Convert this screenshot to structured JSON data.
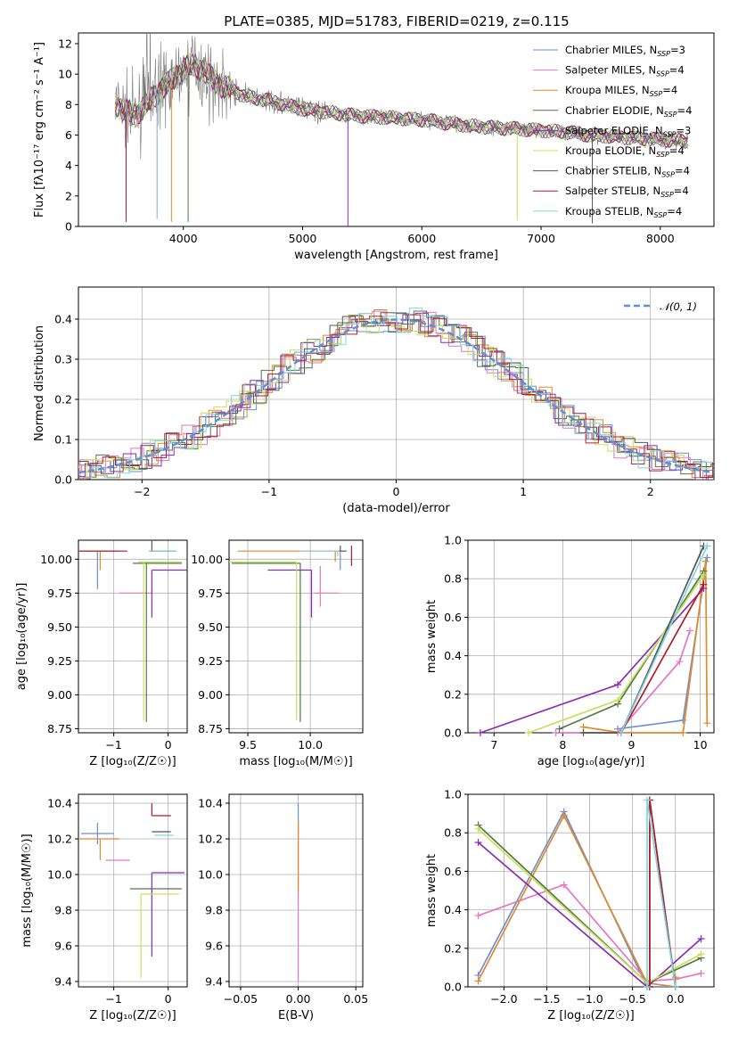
{
  "figure_title": "PLATE=0385, MJD=51783, FIBERID=0219, z=0.115",
  "colors": [
    "#6a8fd6",
    "#e377c2",
    "#e08a2a",
    "#4f7a47",
    "#8a2cb0",
    "#c8e05a",
    "#555555",
    "#b01c2a",
    "#7fd6e0"
  ],
  "chart_data": [
    {
      "id": "spectrum",
      "type": "line",
      "title": "PLATE=0385, MJD=51783, FIBERID=0219, z=0.115",
      "xlabel": "wavelength [Angstrom, rest frame]",
      "ylabel": "Flux [fλ10⁻¹⁷ erg cm⁻² s⁻¹ A⁻¹]",
      "xlim": [
        3120,
        8450
      ],
      "ylim": [
        0,
        12.7
      ],
      "xticks": [
        4000,
        5000,
        6000,
        7000,
        8000
      ],
      "yticks": [
        0,
        2,
        4,
        6,
        8,
        10,
        12
      ],
      "grid": false,
      "legend_position": "top-right",
      "continuum": {
        "x": [
          3430,
          3500,
          3600,
          3700,
          3800,
          3900,
          4000,
          4100,
          4200,
          4300,
          4400,
          4500,
          4600,
          4700,
          4800,
          4900,
          5000,
          5200,
          5400,
          5600,
          5800,
          6000,
          6200,
          6400,
          6600,
          6800,
          7000,
          7200,
          7400,
          7600,
          7800,
          8000,
          8230
        ],
        "y": [
          8.1,
          7.6,
          7.3,
          8.1,
          8.9,
          9.6,
          10.3,
          10.6,
          10.0,
          9.3,
          9.0,
          8.6,
          8.4,
          8.3,
          8.1,
          7.9,
          7.7,
          7.5,
          7.3,
          7.2,
          7.1,
          7.0,
          6.8,
          6.6,
          6.5,
          6.4,
          6.3,
          6.2,
          6.0,
          5.9,
          5.8,
          5.7,
          5.6
        ]
      },
      "series": [
        {
          "name": "Chabrier MILES, Nₛₛₚ=3",
          "label_main": "Chabrier MILES, N",
          "label_sub": "SSP",
          "label_tail": "=3"
        },
        {
          "name": "Salpeter MILES, Nₛₛₚ=4",
          "label_main": "Salpeter MILES, N",
          "label_sub": "SSP",
          "label_tail": "=4"
        },
        {
          "name": "Kroupa MILES, Nₛₛₚ=4",
          "label_main": "Kroupa MILES, N",
          "label_sub": "SSP",
          "label_tail": "=4"
        },
        {
          "name": "Chabrier ELODIE, Nₛₛₚ=4",
          "label_main": "Chabrier ELODIE, N",
          "label_sub": "SSP",
          "label_tail": "=4"
        },
        {
          "name": "Salpeter ELODIE, Nₛₛₚ=3",
          "label_main": "Salpeter ELODIE, N",
          "label_sub": "SSP",
          "label_tail": "=3"
        },
        {
          "name": "Kroupa ELODIE, Nₛₛₚ=4",
          "label_main": "Kroupa ELODIE, N",
          "label_sub": "SSP",
          "label_tail": "=4"
        },
        {
          "name": "Chabrier STELIB, Nₛₛₚ=4",
          "label_main": "Chabrier STELIB, N",
          "label_sub": "SSP",
          "label_tail": "=4"
        },
        {
          "name": "Salpeter STELIB, Nₛₛₚ=4",
          "label_main": "Salpeter STELIB, N",
          "label_sub": "SSP",
          "label_tail": "=4"
        },
        {
          "name": "Kroupa STELIB, Nₛₛₚ=4",
          "label_main": "Kroupa STELIB, N",
          "label_sub": "SSP",
          "label_tail": "=4"
        }
      ]
    },
    {
      "id": "residuals",
      "type": "line",
      "xlabel": "(data-model)/error",
      "ylabel": "Normed distribution",
      "xlim": [
        -2.5,
        2.5
      ],
      "ylim": [
        0,
        0.48
      ],
      "xticks": [
        -2,
        -1,
        0,
        1,
        2
      ],
      "yticks": [
        0.0,
        0.1,
        0.2,
        0.3,
        0.4
      ],
      "grid": true,
      "legend_position": "top-right",
      "reference": {
        "name": "𝒩(0, 1)",
        "mean": 0,
        "sigma": 1
      }
    },
    {
      "id": "age-vs-z",
      "type": "scatter",
      "xlabel": "Z [log₁₀(Z/Z☉)]",
      "ylabel": "age  [log₁₀(age/yr)]",
      "xlim": [
        -1.65,
        0.35
      ],
      "ylim": [
        8.72,
        10.14
      ],
      "xticks": [
        -1,
        0
      ],
      "yticks": [
        8.75,
        9.0,
        9.25,
        9.5,
        9.75,
        10.0
      ],
      "grid": true,
      "points": [
        {
          "x": -1.3,
          "xerr": [
            0.3,
            0.3
          ],
          "y": 10.06,
          "yerr": [
            0.28,
            0.0
          ]
        },
        {
          "x": -0.6,
          "xerr": [
            0.3,
            0.3
          ],
          "y": 9.75,
          "yerr": [
            0.0,
            0.0
          ]
        },
        {
          "x": -1.25,
          "xerr": [
            0.45,
            0.35
          ],
          "y": 10.06,
          "yerr": [
            0.14,
            0.0
          ]
        },
        {
          "x": -0.4,
          "xerr": [
            0.25,
            0.65
          ],
          "y": 9.97,
          "yerr": [
            1.17,
            0.0
          ]
        },
        {
          "x": -0.3,
          "xerr": [
            0.0,
            0.65
          ],
          "y": 9.92,
          "yerr": [
            0.35,
            0.0
          ]
        },
        {
          "x": -0.45,
          "xerr": [
            0.1,
            0.7
          ],
          "y": 9.98,
          "yerr": [
            1.17,
            0.0
          ]
        },
        {
          "x": -0.3,
          "xerr": [
            0.05,
            0.45
          ],
          "y": 10.06,
          "yerr": [
            0.0,
            0.08
          ]
        },
        {
          "x": -1.2,
          "xerr": [
            0.45,
            0.45
          ],
          "y": 10.06,
          "yerr": [
            0.0,
            0.0
          ]
        },
        {
          "x": -0.1,
          "xerr": [
            0.25,
            0.25
          ],
          "y": 10.06,
          "yerr": [
            0.0,
            0.0
          ]
        }
      ]
    },
    {
      "id": "age-vs-mass",
      "type": "scatter",
      "xlabel": "mass [log₁₀(M/M☉)]",
      "ylabel": "",
      "xlim": [
        9.35,
        10.42
      ],
      "ylim": [
        8.72,
        10.14
      ],
      "xticks": [
        9.5,
        10.0
      ],
      "yticks": [
        8.75,
        9.0,
        9.25,
        9.5,
        9.75,
        10.0
      ],
      "grid": true,
      "points": [
        {
          "x": 10.24,
          "xerr": [
            0.0,
            0.0
          ],
          "y": 10.06,
          "yerr": [
            0.14,
            0.0
          ]
        },
        {
          "x": 10.08,
          "xerr": [
            0.05,
            0.15
          ],
          "y": 9.75,
          "yerr": [
            0.1,
            0.2
          ]
        },
        {
          "x": 10.2,
          "xerr": [
            0.78,
            0.05
          ],
          "y": 10.06,
          "yerr": [
            0.08,
            0.0
          ]
        },
        {
          "x": 9.92,
          "xerr": [
            0.55,
            0.0
          ],
          "y": 9.97,
          "yerr": [
            1.17,
            0.0
          ]
        },
        {
          "x": 10.01,
          "xerr": [
            0.35,
            0.0
          ],
          "y": 9.92,
          "yerr": [
            0.35,
            0.0
          ]
        },
        {
          "x": 9.89,
          "xerr": [
            0.55,
            0.0
          ],
          "y": 9.98,
          "yerr": [
            1.17,
            0.0
          ]
        },
        {
          "x": 10.24,
          "xerr": [
            0.0,
            0.05
          ],
          "y": 10.06,
          "yerr": [
            0.0,
            0.04
          ]
        },
        {
          "x": 10.33,
          "xerr": [
            0.0,
            0.0
          ],
          "y": 10.06,
          "yerr": [
            0.11,
            0.04
          ]
        },
        {
          "x": 10.22,
          "xerr": [
            0.3,
            0.0
          ],
          "y": 10.06,
          "yerr": [
            0.04,
            0.0
          ]
        }
      ]
    },
    {
      "id": "weight-vs-age",
      "type": "line",
      "xlabel": "age  [log₁₀(age/yr)]",
      "ylabel": "mass weight",
      "xlim": [
        6.62,
        10.2
      ],
      "ylim": [
        0,
        1.0
      ],
      "xticks": [
        7,
        8,
        9,
        10
      ],
      "yticks": [
        0.0,
        0.2,
        0.4,
        0.6,
        0.8,
        1.0
      ],
      "grid": true,
      "series": [
        {
          "x": [
            8.8,
            9.75,
            10.1
          ],
          "y": [
            0.02,
            0.065,
            0.91
          ]
        },
        {
          "x": [
            7.9,
            8.8,
            9.7,
            9.85
          ],
          "y": [
            0.0,
            0.0,
            0.37,
            0.53
          ]
        },
        {
          "x": [
            8.3,
            8.85,
            9.75,
            10.08,
            10.1
          ],
          "y": [
            0.03,
            0.0,
            0.0,
            0.89,
            0.05
          ]
        },
        {
          "x": [
            7.95,
            8.8,
            10.05
          ],
          "y": [
            0.02,
            0.15,
            0.84
          ]
        },
        {
          "x": [
            6.8,
            8.8,
            10.05
          ],
          "y": [
            0.0,
            0.25,
            0.75
          ]
        },
        {
          "x": [
            7.5,
            8.8,
            10.05
          ],
          "y": [
            0.0,
            0.17,
            0.82
          ]
        },
        {
          "x": [
            8.3,
            8.85,
            10.05
          ],
          "y": [
            0.0,
            0.0,
            0.97
          ]
        },
        {
          "x": [
            8.85,
            10.05
          ],
          "y": [
            0.0,
            0.77
          ]
        },
        {
          "x": [
            8.85,
            10.1
          ],
          "y": [
            0.0,
            0.97
          ]
        }
      ]
    },
    {
      "id": "weight-vs-z",
      "type": "line",
      "xlabel": "Z [log₁₀(Z/Z☉)]",
      "ylabel": "mass weight",
      "xlim": [
        -2.42,
        0.45
      ],
      "ylim": [
        0,
        1.0
      ],
      "xticks": [
        -2.0,
        -1.5,
        -1.0,
        -0.5,
        0.0
      ],
      "yticks": [
        0.0,
        0.2,
        0.4,
        0.6,
        0.8,
        1.0
      ],
      "grid": true,
      "series": [
        {
          "x": [
            -2.3,
            -1.3,
            -0.33,
            0.0
          ],
          "y": [
            0.06,
            0.91,
            0.0,
            0.0
          ]
        },
        {
          "x": [
            -2.3,
            -1.3,
            -0.33,
            0.0,
            0.3
          ],
          "y": [
            0.37,
            0.53,
            0.03,
            0.04,
            0.07
          ]
        },
        {
          "x": [
            -2.3,
            -1.3,
            -0.33,
            0.0,
            0.0
          ],
          "y": [
            0.03,
            0.89,
            0.02,
            0.0,
            0.05
          ]
        },
        {
          "x": [
            -2.3,
            -0.33,
            0.3
          ],
          "y": [
            0.84,
            0.02,
            0.15
          ]
        },
        {
          "x": [
            -2.3,
            -0.33,
            0.3
          ],
          "y": [
            0.75,
            0.0,
            0.25
          ]
        },
        {
          "x": [
            -2.3,
            -0.33,
            0.3
          ],
          "y": [
            0.82,
            0.02,
            0.17
          ]
        },
        {
          "x": [
            -0.3,
            -0.3,
            0.0
          ],
          "y": [
            0.0,
            0.97,
            0.0
          ]
        },
        {
          "x": [
            -0.3,
            -0.3,
            0.0
          ],
          "y": [
            0.0,
            0.97,
            0.0
          ]
        },
        {
          "x": [
            -0.33,
            -0.33,
            0.0
          ],
          "y": [
            0.0,
            0.97,
            0.0
          ]
        }
      ]
    },
    {
      "id": "mass-vs-z",
      "type": "scatter",
      "xlabel": "Z [log₁₀(Z/Z☉)]",
      "ylabel": "mass [log₁₀(M/M☉)]",
      "xlim": [
        -1.65,
        0.35
      ],
      "ylim": [
        9.37,
        10.45
      ],
      "xticks": [
        -1,
        0
      ],
      "yticks": [
        9.4,
        9.6,
        9.8,
        10.0,
        10.2,
        10.4
      ],
      "grid": true,
      "points": [
        {
          "x": -1.3,
          "xerr": [
            0.3,
            0.3
          ],
          "y": 10.23,
          "yerr": [
            0.06,
            0.06
          ]
        },
        {
          "x": -0.85,
          "xerr": [
            0.3,
            0.15
          ],
          "y": 10.08,
          "yerr": [
            0.0,
            0.0
          ]
        },
        {
          "x": -1.25,
          "xerr": [
            0.45,
            0.35
          ],
          "y": 10.2,
          "yerr": [
            0.12,
            0.0
          ]
        },
        {
          "x": -0.4,
          "xerr": [
            0.3,
            0.65
          ],
          "y": 9.92,
          "yerr": [
            0.0,
            0.0
          ]
        },
        {
          "x": -0.3,
          "xerr": [
            0.0,
            0.6
          ],
          "y": 10.01,
          "yerr": [
            0.47,
            0.0
          ]
        },
        {
          "x": -0.5,
          "xerr": [
            0.0,
            0.7
          ],
          "y": 9.89,
          "yerr": [
            0.47,
            0.0
          ]
        },
        {
          "x": -0.3,
          "xerr": [
            0.0,
            0.35
          ],
          "y": 10.24,
          "yerr": [
            0.0,
            0.0
          ]
        },
        {
          "x": -0.3,
          "xerr": [
            0.0,
            0.35
          ],
          "y": 10.33,
          "yerr": [
            0.0,
            0.07
          ]
        },
        {
          "x": -0.25,
          "xerr": [
            0.0,
            0.35
          ],
          "y": 10.22,
          "yerr": [
            0.0,
            0.0
          ]
        }
      ]
    },
    {
      "id": "mass-vs-ebv",
      "type": "scatter",
      "xlabel": "E(B-V)",
      "ylabel": "",
      "xlim": [
        -0.06,
        0.056
      ],
      "ylim": [
        9.37,
        10.45
      ],
      "xticks": [
        -0.05,
        0.0,
        0.05
      ],
      "yticks": [
        9.4,
        9.6,
        9.8,
        10.0,
        10.2,
        10.4
      ],
      "grid": true,
      "points": [
        {
          "x": 0.0,
          "y": 10.33,
          "yerr": [
            0.1,
            0.07
          ]
        },
        {
          "x": 0.0,
          "y": 10.0,
          "yerr": [
            0.6,
            0.3
          ]
        },
        {
          "x": 0.0,
          "y": 10.1,
          "yerr": [
            0.2,
            0.2
          ]
        }
      ]
    }
  ]
}
